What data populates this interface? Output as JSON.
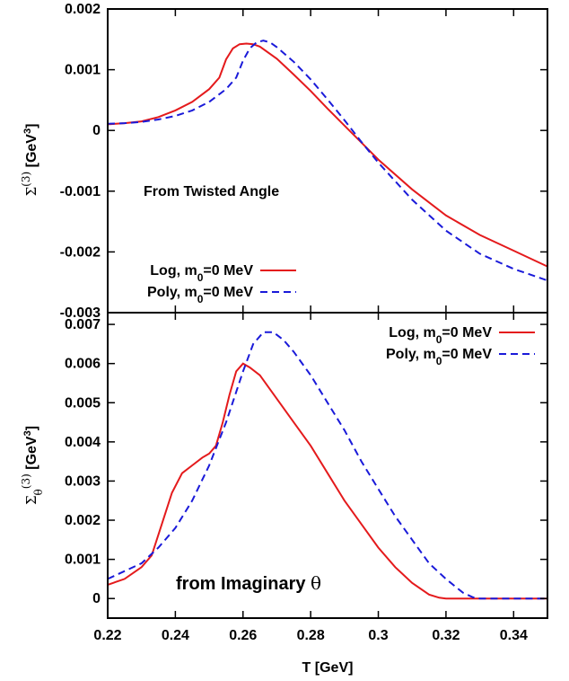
{
  "chart_data": [
    {
      "type": "line",
      "ylabel": "Σ(3) [GeV3]",
      "ylabel_parts": {
        "base": "Σ",
        "sup": "(3)",
        "unit_pre": " [GeV",
        "unit_sup": "3",
        "unit_post": "]"
      },
      "xlim": [
        0.22,
        0.35
      ],
      "ylim": [
        -0.003,
        0.002
      ],
      "yticks": [
        -0.003,
        -0.002,
        -0.001,
        0,
        0.001,
        0.002
      ],
      "ytick_labels": [
        "-0.003",
        "-0.002",
        "-0.001",
        "0",
        "0.001",
        "0.002"
      ],
      "annotation": "From Twisted Angle",
      "legend_position": "bottom-left",
      "series": [
        {
          "name": "Log, m0=0 MeV",
          "label_parts": {
            "pre": "Log, m",
            "sub": "0",
            "post": "=0 MeV"
          },
          "color": "#e41a1c",
          "dash": "solid",
          "x": [
            0.22,
            0.225,
            0.23,
            0.235,
            0.24,
            0.245,
            0.25,
            0.253,
            0.255,
            0.257,
            0.259,
            0.261,
            0.263,
            0.265,
            0.27,
            0.275,
            0.28,
            0.285,
            0.29,
            0.295,
            0.3,
            0.31,
            0.32,
            0.33,
            0.34,
            0.35
          ],
          "y": [
            0.0001,
            0.00012,
            0.00015,
            0.00022,
            0.00033,
            0.00047,
            0.00068,
            0.00087,
            0.00117,
            0.00135,
            0.00142,
            0.00143,
            0.00142,
            0.00138,
            0.00118,
            0.00092,
            0.00065,
            0.00036,
            8e-05,
            -0.0002,
            -0.00048,
            -0.00097,
            -0.0014,
            -0.00172,
            -0.00198,
            -0.00224
          ]
        },
        {
          "name": "Poly, m0=0 MeV",
          "label_parts": {
            "pre": "Poly, m",
            "sub": "0",
            "post": "=0 MeV"
          },
          "color": "#1a1ad9",
          "dash": "dashed",
          "x": [
            0.22,
            0.225,
            0.23,
            0.235,
            0.24,
            0.245,
            0.25,
            0.255,
            0.258,
            0.26,
            0.262,
            0.264,
            0.266,
            0.268,
            0.27,
            0.275,
            0.28,
            0.285,
            0.29,
            0.295,
            0.3,
            0.31,
            0.32,
            0.33,
            0.34,
            0.35
          ],
          "y": [
            0.00011,
            0.00012,
            0.00014,
            0.00018,
            0.00024,
            0.00033,
            0.00047,
            0.00068,
            0.00087,
            0.00115,
            0.00135,
            0.00145,
            0.00148,
            0.00145,
            0.00137,
            0.00113,
            0.00084,
            0.00051,
            0.00017,
            -0.00019,
            -0.00053,
            -0.00114,
            -0.00165,
            -0.00203,
            -0.00228,
            -0.00247
          ]
        }
      ]
    },
    {
      "type": "line",
      "xlabel": "T [GeV]",
      "ylabel": "Σθ(3) [GeV3]",
      "ylabel_parts": {
        "base": "Σ",
        "sub": "θ",
        "sup": "(3)",
        "unit_pre": " [GeV",
        "unit_sup": "3",
        "unit_post": "]"
      },
      "xlim": [
        0.22,
        0.35
      ],
      "ylim": [
        -0.0005,
        0.0073
      ],
      "xticks": [
        0.22,
        0.24,
        0.26,
        0.28,
        0.3,
        0.32,
        0.34
      ],
      "xtick_labels": [
        "0.22",
        "0.24",
        "0.26",
        "0.28",
        "0.3",
        "0.32",
        "0.34"
      ],
      "yticks": [
        0,
        0.001,
        0.002,
        0.003,
        0.004,
        0.005,
        0.006,
        0.007
      ],
      "ytick_labels": [
        "0",
        "0.001",
        "0.002",
        "0.003",
        "0.004",
        "0.005",
        "0.006",
        "0.007"
      ],
      "annotation": "from Imaginary θ",
      "legend_position": "top-right",
      "series": [
        {
          "name": "Log, m0=0 MeV",
          "label_parts": {
            "pre": "Log, m",
            "sub": "0",
            "post": "=0 MeV"
          },
          "color": "#e41a1c",
          "dash": "solid",
          "x": [
            0.22,
            0.225,
            0.23,
            0.233,
            0.236,
            0.239,
            0.242,
            0.245,
            0.248,
            0.25,
            0.252,
            0.254,
            0.256,
            0.258,
            0.26,
            0.262,
            0.265,
            0.27,
            0.275,
            0.28,
            0.285,
            0.29,
            0.295,
            0.3,
            0.305,
            0.31,
            0.315,
            0.318,
            0.32,
            0.33,
            0.34,
            0.35
          ],
          "y": [
            0.00035,
            0.0005,
            0.0008,
            0.0011,
            0.0019,
            0.0027,
            0.0032,
            0.0034,
            0.0036,
            0.0037,
            0.0039,
            0.0045,
            0.0052,
            0.0058,
            0.006,
            0.0059,
            0.0057,
            0.0051,
            0.0045,
            0.0039,
            0.0032,
            0.0025,
            0.0019,
            0.0013,
            0.0008,
            0.0004,
            0.0001,
            2e-05,
            0,
            0,
            0,
            0
          ]
        },
        {
          "name": "Poly, m0=0 MeV",
          "label_parts": {
            "pre": "Poly, m",
            "sub": "0",
            "post": "=0 MeV"
          },
          "color": "#1a1ad9",
          "dash": "dashed",
          "x": [
            0.22,
            0.225,
            0.23,
            0.235,
            0.24,
            0.245,
            0.25,
            0.255,
            0.26,
            0.263,
            0.266,
            0.269,
            0.272,
            0.275,
            0.28,
            0.285,
            0.29,
            0.295,
            0.3,
            0.305,
            0.31,
            0.315,
            0.32,
            0.325,
            0.328,
            0.33,
            0.34,
            0.35
          ],
          "y": [
            0.0005,
            0.0007,
            0.0009,
            0.0013,
            0.0018,
            0.0025,
            0.0034,
            0.0045,
            0.0058,
            0.0065,
            0.0068,
            0.0068,
            0.0066,
            0.0063,
            0.0057,
            0.005,
            0.0043,
            0.0035,
            0.0028,
            0.0021,
            0.0015,
            0.0009,
            0.0005,
            0.00015,
            3e-05,
            0,
            0,
            0
          ]
        }
      ]
    }
  ]
}
